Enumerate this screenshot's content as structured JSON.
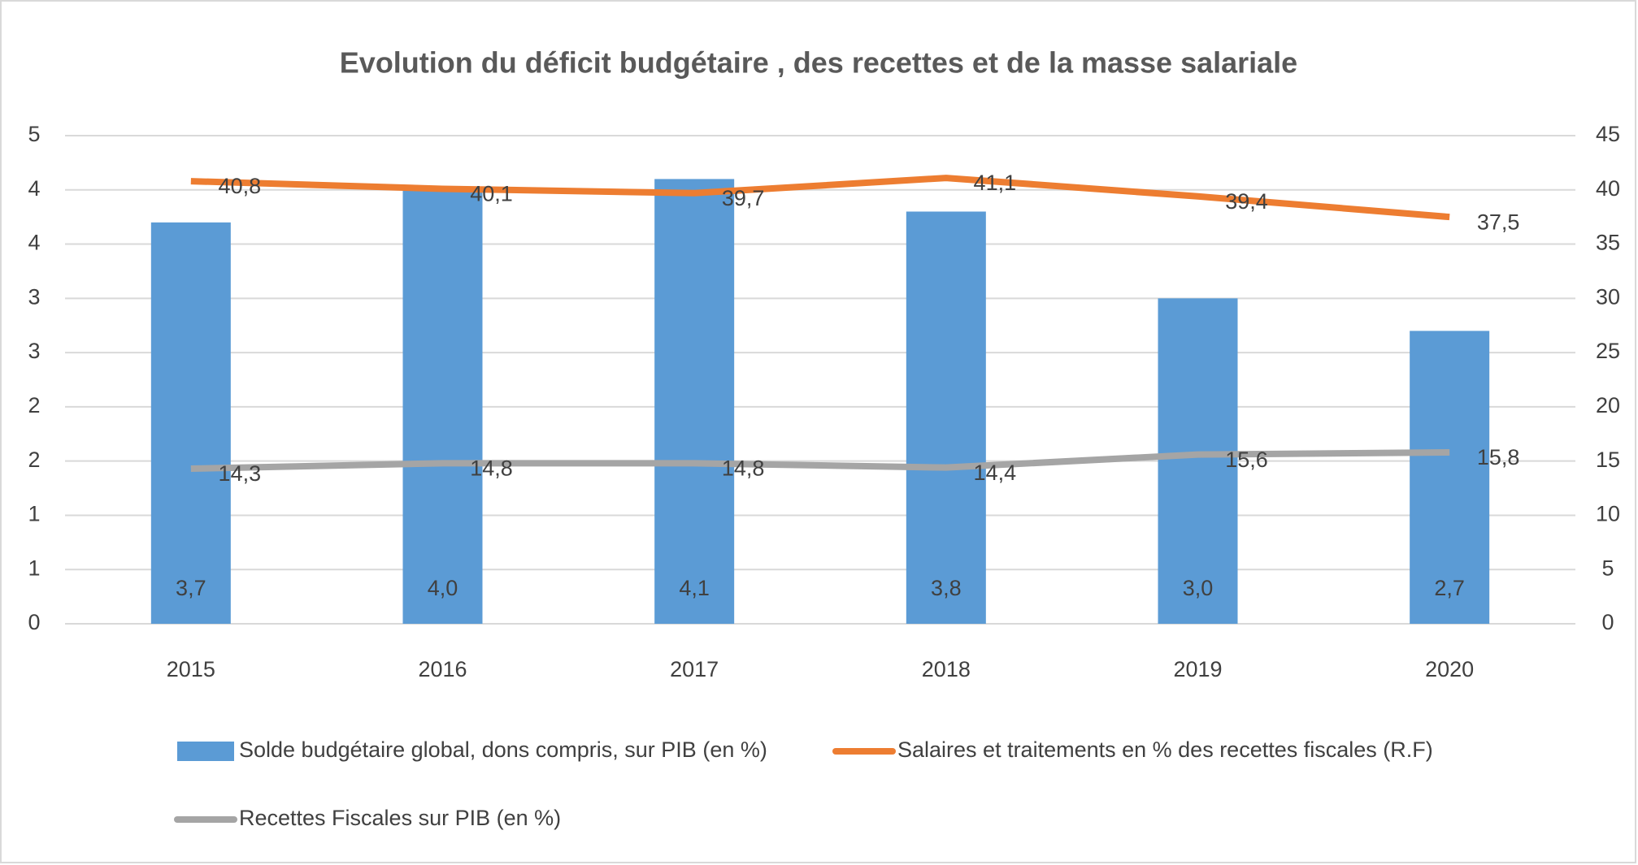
{
  "chart_data": {
    "type": "bar",
    "title": "Evolution du déficit budgétaire , des recettes et de la masse salariale",
    "categories": [
      "2015",
      "2016",
      "2017",
      "2018",
      "2019",
      "2020"
    ],
    "series": [
      {
        "name": "Solde budgétaire global, dons compris, sur PIB (en %)",
        "type": "bar",
        "color": "#5b9bd5",
        "values": [
          3.7,
          4.0,
          4.1,
          3.8,
          3.0,
          2.7
        ],
        "value_labels": [
          "3,7",
          "4,0",
          "4,1",
          "3,8",
          "3,0",
          "2,7"
        ]
      },
      {
        "name": "Salaires et traitements en % des recettes fiscales (R.F)",
        "type": "line",
        "axis": "y2",
        "color": "#ed7d31",
        "values": [
          40.8,
          40.1,
          39.7,
          41.1,
          39.4,
          37.5
        ],
        "value_labels": [
          "40,8",
          "40,1",
          "39,7",
          "41,1",
          "39,4",
          "37,5"
        ]
      },
      {
        "name": "Recettes Fiscales sur PIB (en %)",
        "type": "line",
        "axis": "y2",
        "color": "#a5a5a5",
        "values": [
          14.3,
          14.8,
          14.8,
          14.4,
          15.6,
          15.8
        ],
        "value_labels": [
          "14,3",
          "14,8",
          "14,8",
          "14,4",
          "15,6",
          "15,8"
        ]
      }
    ],
    "ylim": [
      0,
      4.5
    ],
    "yticks": [
      0,
      {
        "value": 0.5,
        "label": "1"
      },
      1,
      {
        "value": 1.5,
        "label": "2"
      },
      2,
      {
        "value": 2.5,
        "label": "3"
      },
      3,
      {
        "value": 3.5,
        "label": "4"
      },
      4,
      {
        "value": 4.5,
        "label": "5"
      }
    ],
    "y2lim": [
      0,
      45
    ],
    "y2ticks": [
      0,
      5,
      10,
      15,
      20,
      25,
      30,
      35,
      40,
      45
    ],
    "grid": true
  }
}
